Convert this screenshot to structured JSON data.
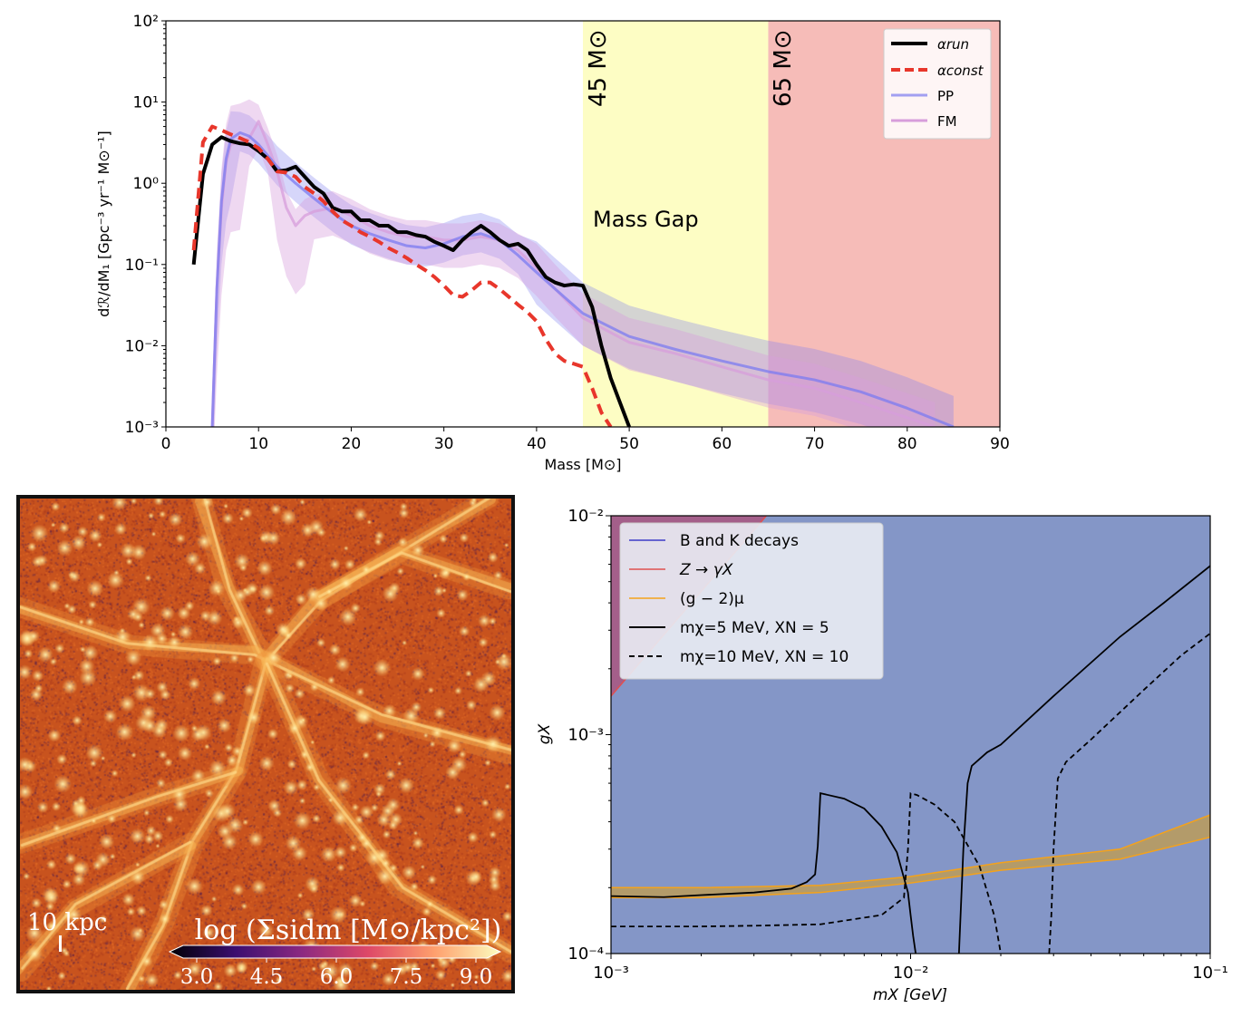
{
  "chart_data": [
    {
      "type": "line",
      "xlabel": "Mass [M⊙]",
      "ylabel": "dℛ/dM₁ [Gpc⁻³ yr⁻¹ M⊙⁻¹]",
      "xlim": [
        0,
        90
      ],
      "ylim": [
        0.001,
        100
      ],
      "yscale": "log",
      "xticks": [
        "0",
        "10",
        "20",
        "30",
        "40",
        "50",
        "60",
        "70",
        "80",
        "90"
      ],
      "yticks": [
        "10⁻³",
        "10⁻²",
        "10⁻¹",
        "10⁰",
        "10¹",
        "10²"
      ],
      "legend_position": "top-right",
      "regions": [
        {
          "from": 45,
          "to": 65,
          "color": "#fdfdc4",
          "label": "45 M⊙"
        },
        {
          "from": 65,
          "to": 90,
          "color": "#f6bcb8",
          "label": "65 M⊙"
        }
      ],
      "annotation": "Mass Gap",
      "series": [
        {
          "name": "αrun",
          "color": "#000000",
          "style": "solid",
          "x": [
            3,
            4,
            5,
            6,
            7,
            8,
            9,
            10,
            11,
            12,
            13,
            14,
            15,
            16,
            17,
            18,
            19,
            20,
            21,
            22,
            23,
            24,
            25,
            26,
            27,
            28,
            29,
            30,
            31,
            32,
            33,
            34,
            35,
            36,
            37,
            38,
            39,
            40,
            41,
            42,
            43,
            44,
            45,
            46,
            47,
            48,
            49,
            50
          ],
          "y": [
            0.1,
            1.3,
            3.0,
            3.7,
            3.3,
            3.1,
            3.0,
            2.5,
            2.0,
            1.4,
            1.45,
            1.6,
            1.2,
            0.9,
            0.75,
            0.5,
            0.45,
            0.45,
            0.35,
            0.35,
            0.3,
            0.3,
            0.25,
            0.25,
            0.23,
            0.22,
            0.19,
            0.17,
            0.15,
            0.2,
            0.25,
            0.3,
            0.25,
            0.2,
            0.17,
            0.18,
            0.15,
            0.1,
            0.07,
            0.06,
            0.055,
            0.057,
            0.055,
            0.03,
            0.01,
            0.004,
            0.002,
            0.001
          ]
        },
        {
          "name": "αconst",
          "color": "#e8362b",
          "style": "dashed",
          "x": [
            3,
            4,
            5,
            6,
            7,
            8,
            9,
            10,
            11,
            12,
            13,
            14,
            15,
            16,
            17,
            18,
            19,
            20,
            21,
            22,
            23,
            24,
            25,
            26,
            27,
            28,
            29,
            30,
            31,
            32,
            33,
            34,
            35,
            36,
            37,
            38,
            39,
            40,
            41,
            42,
            43,
            44,
            45,
            46,
            47,
            48
          ],
          "y": [
            0.15,
            3.2,
            5.0,
            4.5,
            4.0,
            3.6,
            3.2,
            2.7,
            2.0,
            1.4,
            1.35,
            1.2,
            0.9,
            0.75,
            0.6,
            0.45,
            0.35,
            0.3,
            0.25,
            0.22,
            0.19,
            0.16,
            0.14,
            0.12,
            0.1,
            0.085,
            0.07,
            0.055,
            0.042,
            0.04,
            0.048,
            0.06,
            0.06,
            0.05,
            0.04,
            0.032,
            0.026,
            0.02,
            0.012,
            0.008,
            0.0065,
            0.006,
            0.0055,
            0.003,
            0.0015,
            0.001
          ]
        },
        {
          "name": "PP",
          "color": "#7b7bf0",
          "style": "solid",
          "x": [
            5,
            5.5,
            6,
            6.5,
            7,
            8,
            9,
            10,
            12,
            14,
            16,
            18,
            20,
            22,
            24,
            26,
            28,
            30,
            32,
            34,
            36,
            38,
            40,
            42,
            45,
            50,
            55,
            60,
            65,
            70,
            75,
            80,
            85
          ],
          "y": [
            0.001,
            0.05,
            0.6,
            2.0,
            3.5,
            4.2,
            3.8,
            3.0,
            1.6,
            1.0,
            0.65,
            0.43,
            0.3,
            0.24,
            0.2,
            0.17,
            0.16,
            0.18,
            0.22,
            0.24,
            0.2,
            0.13,
            0.08,
            0.05,
            0.025,
            0.013,
            0.009,
            0.0065,
            0.0048,
            0.0038,
            0.0027,
            0.0017,
            0.001
          ]
        },
        {
          "name": "FM",
          "color": "#d79ddb",
          "style": "solid",
          "x": [
            5,
            5.5,
            6,
            6.5,
            7,
            8,
            9,
            10,
            11,
            12,
            13,
            14,
            15,
            16,
            18,
            20,
            22,
            24,
            26,
            28,
            30,
            32,
            34,
            36,
            38,
            40,
            42,
            45,
            50,
            55,
            60,
            65,
            70,
            75,
            80,
            83
          ],
          "y": [
            0.001,
            0.05,
            0.5,
            1.8,
            3.0,
            3.2,
            3.6,
            5.8,
            3.0,
            1.4,
            0.5,
            0.3,
            0.4,
            0.45,
            0.5,
            0.4,
            0.3,
            0.25,
            0.22,
            0.22,
            0.2,
            0.2,
            0.22,
            0.2,
            0.15,
            0.09,
            0.05,
            0.022,
            0.011,
            0.008,
            0.0055,
            0.0038,
            0.003,
            0.002,
            0.0013,
            0.001
          ]
        }
      ]
    },
    {
      "type": "scatter",
      "colorbar_label": "log (Σsidm [M⊙/kpc²])",
      "colorbar_ticks": [
        "3.0",
        "4.5",
        "6.0",
        "7.5",
        "9.0"
      ],
      "scale_bar": "10 kpc"
    },
    {
      "type": "line",
      "xlabel": "mX [GeV]",
      "ylabel": "gX",
      "xscale": "log",
      "yscale": "log",
      "xlim": [
        0.001,
        0.1
      ],
      "ylim": [
        0.0001,
        0.01
      ],
      "xticks": [
        "10⁻³",
        "10⁻²",
        "10⁻¹"
      ],
      "yticks": [
        "10⁻⁴",
        "10⁻³",
        "10⁻²"
      ],
      "legend_position": "top-left",
      "series": [
        {
          "name": "B and K decays",
          "color": "#3c3cc8"
        },
        {
          "name": "Z → γX",
          "color": "#e05050"
        },
        {
          "name": "(g − 2)μ",
          "color": "#f4a21b",
          "x": [
            0.001,
            0.002,
            0.005,
            0.01,
            0.02,
            0.05,
            0.1
          ],
          "y_low": [
            0.00018,
            0.00018,
            0.00019,
            0.00021,
            0.00024,
            0.00027,
            0.00034
          ],
          "y_high": [
            0.0002,
            0.0002,
            0.000205,
            0.000225,
            0.00026,
            0.0003,
            0.00043
          ]
        },
        {
          "name": "mχ=5 MeV, XN = 5",
          "color": "#000000",
          "style": "solid",
          "x": [
            0.001,
            0.0015,
            0.002,
            0.003,
            0.004,
            0.0045,
            0.0048,
            0.0049,
            0.005,
            0.006,
            0.007,
            0.008,
            0.009,
            0.0098,
            0.01,
            0.0102,
            0.0104
          ],
          "y": [
            0.000183,
            0.000181,
            0.000185,
            0.00019,
            0.000198,
            0.000212,
            0.00023,
            0.00031,
            0.00054,
            0.00051,
            0.00046,
            0.00038,
            0.00029,
            0.00019,
            0.00015,
            0.00012,
            0.0001
          ]
        },
        {
          "name": "mχ=5 MeV, XN = 5 (branch 2)",
          "color": "#000000",
          "style": "solid",
          "x": [
            0.0145,
            0.015,
            0.0155,
            0.016,
            0.018,
            0.02,
            0.03,
            0.05,
            0.07,
            0.1
          ],
          "y": [
            0.0001,
            0.0003,
            0.0006,
            0.00072,
            0.00083,
            0.0009,
            0.0015,
            0.0028,
            0.004,
            0.0059
          ]
        },
        {
          "name": "mχ=10 MeV, XN = 10",
          "color": "#000000",
          "style": "dashed",
          "x": [
            0.001,
            0.002,
            0.003,
            0.005,
            0.008,
            0.0095,
            0.0098,
            0.01,
            0.0105,
            0.012,
            0.014,
            0.017,
            0.019,
            0.02
          ],
          "y": [
            0.000133,
            0.000133,
            0.000134,
            0.000136,
            0.00015,
            0.00018,
            0.0003,
            0.00054,
            0.00053,
            0.00048,
            0.0004,
            0.00025,
            0.00015,
            0.0001
          ]
        },
        {
          "name": "mχ=10 MeV, XN = 10 (branch 2)",
          "color": "#000000",
          "style": "dashed",
          "x": [
            0.029,
            0.0295,
            0.03,
            0.031,
            0.033,
            0.04,
            0.06,
            0.08,
            0.1
          ],
          "y": [
            0.0001,
            0.00015,
            0.0003,
            0.00063,
            0.00075,
            0.00095,
            0.0016,
            0.0023,
            0.0029
          ]
        }
      ]
    }
  ]
}
